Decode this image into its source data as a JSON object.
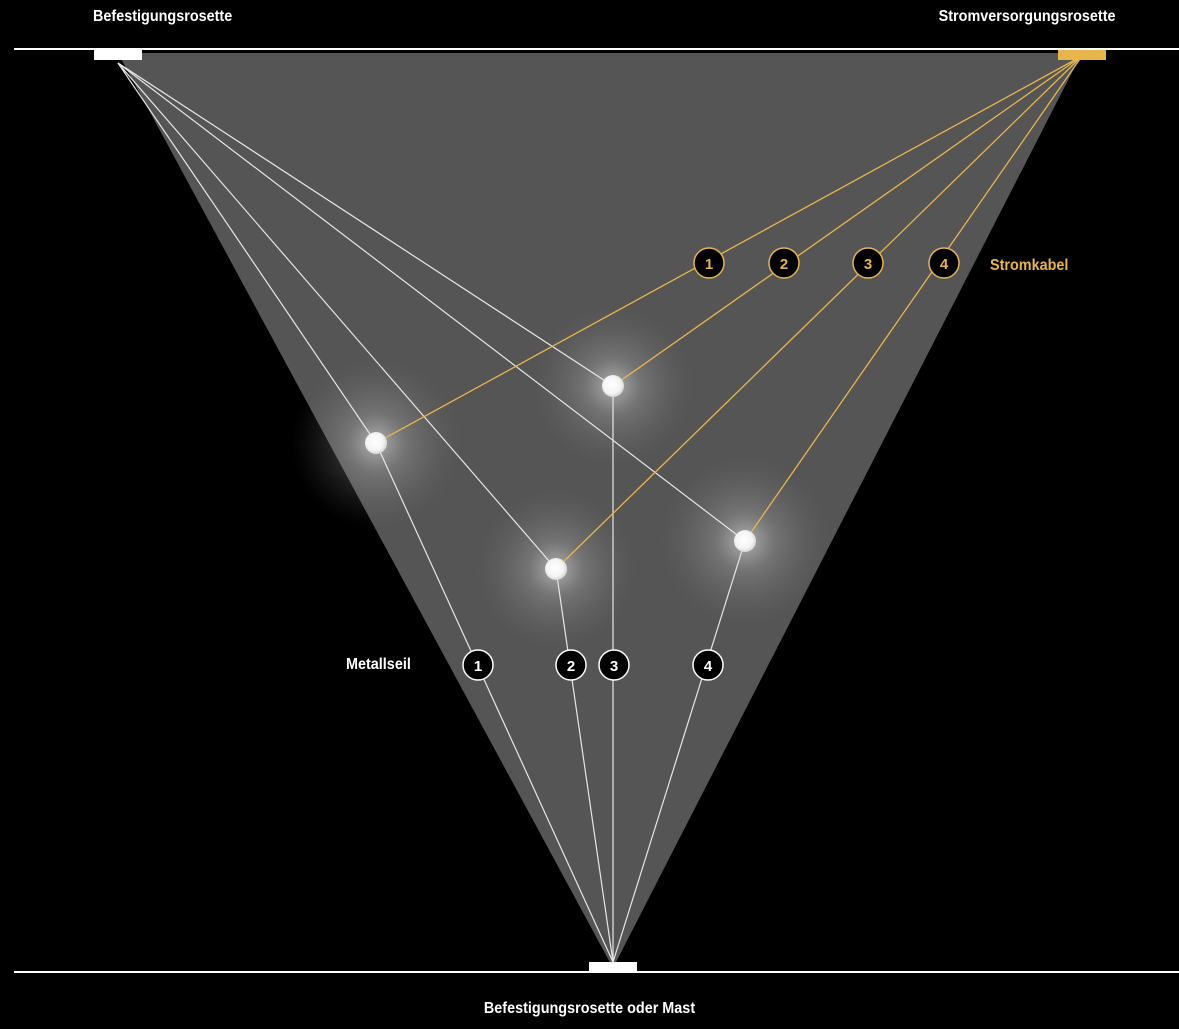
{
  "labels": {
    "top_left": "Befestigungsrosette",
    "top_right": "Stromversorgungsrosette",
    "bottom": "Befestigungsrosette oder Mast",
    "metal_rope": "Metallseil",
    "power_cable": "Stromkabel"
  },
  "metal_rope_badges": [
    "1",
    "2",
    "3",
    "4"
  ],
  "power_cable_badges": [
    "1",
    "2",
    "3",
    "4"
  ],
  "colors": {
    "background": "#000000",
    "cone": "#555555",
    "rope": "#e6e6e6",
    "cable": "#e8b54a",
    "mount_white": "#ffffff",
    "mount_power": "#e8b54a"
  }
}
